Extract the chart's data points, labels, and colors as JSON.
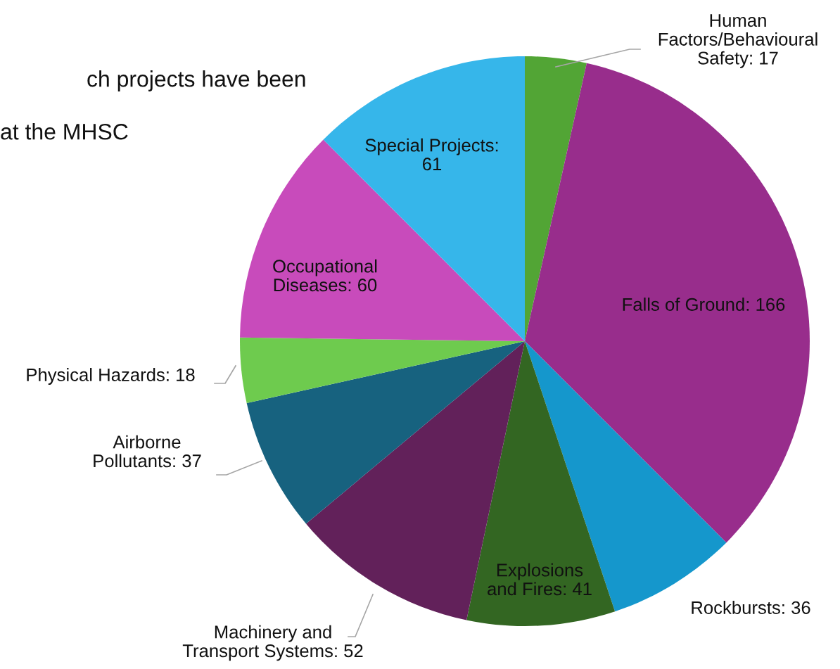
{
  "chart_data": {
    "type": "pie",
    "categories": [
      "Human Factors/Behavioural Safety: 17",
      "Falls of Ground: 166",
      "Rockbursts: 36",
      "Explosions and Fires: 41",
      "Machinery and Transport Systems: 52",
      "Airborne Pollutants: 37",
      "Physical Hazards: 18",
      "Occupational Diseases: 60",
      "Special Projects: 61"
    ],
    "values": [
      17,
      166,
      36,
      41,
      52,
      37,
      18,
      60,
      61
    ],
    "colors": [
      "#52a535",
      "#982d8c",
      "#1597cc",
      "#336622",
      "#62215a",
      "#17627f",
      "#6ecb4e",
      "#c84bbb",
      "#36b6ea"
    ],
    "annotations": [
      "ch projects have been",
      "at the MHSC"
    ]
  }
}
